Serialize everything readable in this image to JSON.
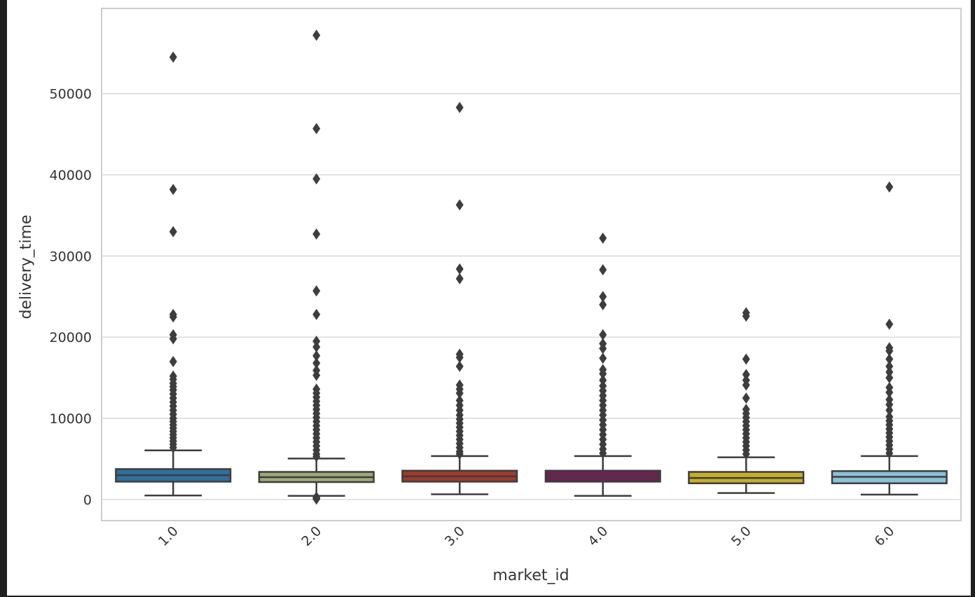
{
  "chart_data": {
    "type": "box",
    "title": "",
    "xlabel": "market_id",
    "ylabel": "delivery_time",
    "categories": [
      "1.0",
      "2.0",
      "3.0",
      "4.0",
      "5.0",
      "6.0"
    ],
    "ylim": [
      -2600,
      60500
    ],
    "yticks": [
      0,
      10000,
      20000,
      30000,
      40000,
      50000
    ],
    "grid": true,
    "legend": "none",
    "boxes": [
      {
        "category": "1.0",
        "color": "#2f6f9e",
        "whisker_low": 500,
        "q1": 2200,
        "median": 3000,
        "q3": 3750,
        "whisker_high": 6050,
        "outliers": [
          54500,
          38200,
          33000,
          22800,
          22500,
          20300,
          19800,
          17000,
          15200,
          14800,
          14300,
          13900,
          13500,
          13000,
          12500,
          12000,
          11500,
          11000,
          10500,
          10000,
          9600,
          9200,
          8800,
          8400,
          8000,
          7600,
          7200,
          6800,
          6400
        ]
      },
      {
        "category": "2.0",
        "color": "#9caa7a",
        "whisker_low": 450,
        "q1": 2150,
        "median": 2750,
        "q3": 3400,
        "whisker_high": 5050,
        "outliers": [
          57200,
          45700,
          39500,
          32700,
          25700,
          22800,
          19500,
          18800,
          17700,
          16800,
          15900,
          15300,
          13600,
          13100,
          12600,
          12100,
          11600,
          11100,
          10600,
          10100,
          9600,
          9100,
          8600,
          8100,
          7600,
          7100,
          6600,
          6100,
          5600,
          5300,
          300,
          150,
          50
        ]
      },
      {
        "category": "3.0",
        "color": "#a03a2a",
        "whisker_low": 650,
        "q1": 2200,
        "median": 2850,
        "q3": 3550,
        "whisker_high": 5350,
        "outliers": [
          48300,
          36300,
          28400,
          27200,
          17900,
          17500,
          16400,
          14100,
          13600,
          13100,
          12200,
          11600,
          11000,
          10400,
          9900,
          9400,
          8900,
          8400,
          7900,
          7400,
          6900,
          6400,
          5900,
          5600
        ]
      },
      {
        "category": "4.0",
        "color": "#6e2152",
        "whisker_low": 450,
        "q1": 2200,
        "median": 2850,
        "q3": 3550,
        "whisker_high": 5350,
        "outliers": [
          32200,
          28300,
          25000,
          24000,
          20300,
          19200,
          18600,
          17400,
          16000,
          15500,
          14700,
          14000,
          13400,
          12800,
          12200,
          11600,
          11000,
          10400,
          9800,
          9200,
          8600,
          8000,
          7400,
          6800,
          6200,
          5700
        ]
      },
      {
        "category": "5.0",
        "color": "#c7ad2b",
        "whisker_low": 800,
        "q1": 2000,
        "median": 2650,
        "q3": 3400,
        "whisker_high": 5200,
        "outliers": [
          23000,
          22600,
          17300,
          15400,
          14700,
          14100,
          12500,
          11100,
          10600,
          10100,
          9600,
          9100,
          8600,
          8100,
          7600,
          7100,
          6600,
          6100,
          5600
        ]
      },
      {
        "category": "6.0",
        "color": "#8cc0d8",
        "whisker_low": 600,
        "q1": 2000,
        "median": 2800,
        "q3": 3500,
        "whisker_high": 5350,
        "outliers": [
          38500,
          21600,
          18700,
          18300,
          17300,
          16400,
          15700,
          15000,
          13800,
          13200,
          12300,
          11700,
          11000,
          10200,
          9700,
          9200,
          8700,
          8200,
          7700,
          7200,
          6700,
          6200,
          5700
        ]
      }
    ]
  }
}
